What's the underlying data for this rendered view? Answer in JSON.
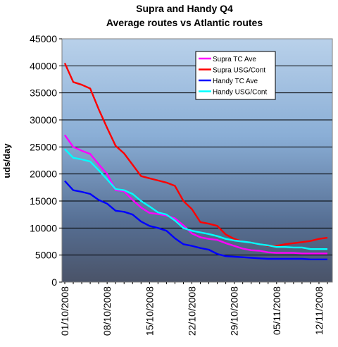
{
  "chart_data": {
    "type": "line",
    "title": "Supra and Handy Q4",
    "subtitle": "Average routes vs Atlantic routes",
    "xlabel": "",
    "ylabel": "uds/day",
    "ylim": [
      0,
      45000
    ],
    "y_ticks": [
      0,
      5000,
      10000,
      15000,
      20000,
      25000,
      30000,
      35000,
      40000,
      45000
    ],
    "x_tick_labels": [
      "01/10/2008",
      "08/10/2008",
      "15/10/2008",
      "22/10/2008",
      "29/10/2008",
      "05/11/2008",
      "12/11/2008"
    ],
    "x": [
      "01/10/2008",
      "02/10/2008",
      "03/10/2008",
      "06/10/2008",
      "07/10/2008",
      "08/10/2008",
      "09/10/2008",
      "10/10/2008",
      "13/10/2008",
      "14/10/2008",
      "15/10/2008",
      "16/10/2008",
      "17/10/2008",
      "20/10/2008",
      "21/10/2008",
      "22/10/2008",
      "23/10/2008",
      "24/10/2008",
      "27/10/2008",
      "28/10/2008",
      "29/10/2008",
      "30/10/2008",
      "31/10/2008",
      "03/11/2008",
      "04/11/2008",
      "05/11/2008",
      "06/11/2008",
      "07/11/2008",
      "10/11/2008",
      "11/11/2008",
      "12/11/2008",
      "13/11/2008"
    ],
    "grid": true,
    "legend_position": "top-right",
    "series": [
      {
        "name": "Supra TC Ave",
        "color": "#ff00ff",
        "values": [
          27200,
          25000,
          24300,
          23700,
          21800,
          20000,
          17000,
          16800,
          15200,
          13800,
          12800,
          12600,
          12300,
          11800,
          10500,
          9000,
          8300,
          8000,
          7800,
          7200,
          6700,
          6200,
          5900,
          5800,
          5500,
          5400,
          5400,
          5400,
          5300,
          5300,
          5300,
          5300
        ]
      },
      {
        "name": "Supra USG/Cont",
        "color": "#ff0000",
        "values": [
          40500,
          37000,
          36500,
          35800,
          32000,
          28500,
          25200,
          23800,
          21700,
          19600,
          19200,
          18800,
          18400,
          17800,
          15000,
          13500,
          11100,
          10800,
          10400,
          8800,
          8000,
          7500,
          7300,
          7000,
          6700,
          6700,
          7000,
          7200,
          7400,
          7600,
          8000,
          8200
        ]
      },
      {
        "name": "Handy TC Ave",
        "color": "#0000ff",
        "values": [
          18700,
          17000,
          16700,
          16300,
          15200,
          14500,
          13200,
          13000,
          12500,
          11200,
          10400,
          10000,
          9500,
          8100,
          7000,
          6700,
          6300,
          6000,
          5200,
          4800,
          4700,
          4600,
          4500,
          4400,
          4300,
          4300,
          4300,
          4300,
          4300,
          4200,
          4200,
          4200
        ]
      },
      {
        "name": "Handy USG/Cont",
        "color": "#00ffff",
        "values": [
          24600,
          23000,
          22700,
          22300,
          20700,
          19000,
          17200,
          17000,
          16300,
          15000,
          14000,
          12900,
          12500,
          11400,
          10000,
          9500,
          9200,
          8900,
          8500,
          8000,
          7700,
          7500,
          7300,
          7000,
          6800,
          6500,
          6500,
          6400,
          6400,
          6100,
          6100,
          6100
        ]
      }
    ]
  }
}
